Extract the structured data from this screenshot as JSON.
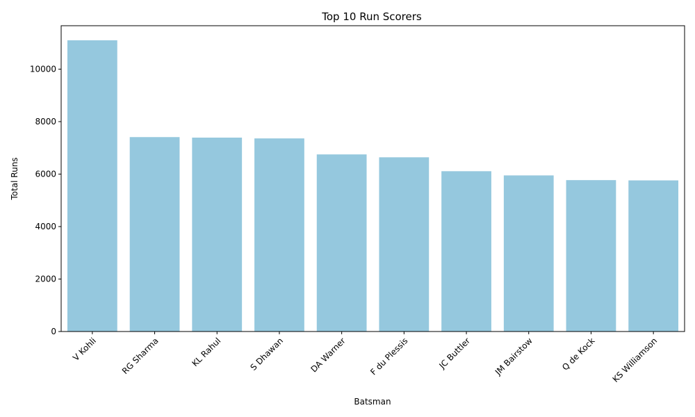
{
  "chart_data": {
    "type": "bar",
    "title": "Top 10 Run Scorers",
    "xlabel": "Batsman",
    "ylabel": "Total Runs",
    "categories": [
      "V Kohli",
      "RG Sharma",
      "KL Rahul",
      "S Dhawan",
      "DA Warner",
      "F du Plessis",
      "JC Buttler",
      "JM Bairstow",
      "Q de Kock",
      "KS Williamson"
    ],
    "values": [
      11100,
      7410,
      7390,
      7360,
      6750,
      6640,
      6110,
      5950,
      5770,
      5760
    ],
    "ylim": [
      0,
      11655
    ],
    "yticks": [
      0,
      2000,
      4000,
      6000,
      8000,
      10000
    ],
    "grid": false,
    "bar_color": "#95c8de"
  }
}
